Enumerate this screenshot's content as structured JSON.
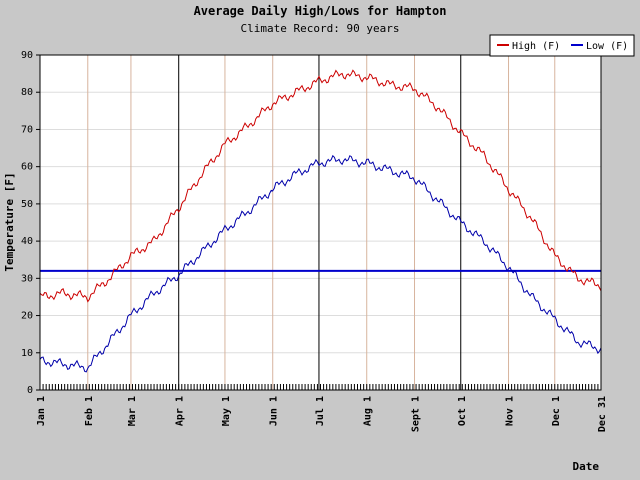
{
  "chart_data": {
    "type": "line",
    "title": "Average Daily High/Lows for Hampton",
    "subtitle": "Climate Record: 90 years",
    "xlabel": "Date",
    "ylabel": "Temperature [F]",
    "ylim": [
      0,
      90
    ],
    "yticks": [
      0,
      10,
      20,
      30,
      40,
      50,
      60,
      70,
      80,
      90
    ],
    "xlim": [
      1,
      365
    ],
    "xticks": [
      {
        "day": 1,
        "label": "Jan 1"
      },
      {
        "day": 32,
        "label": "Feb 1"
      },
      {
        "day": 60,
        "label": "Mar 1"
      },
      {
        "day": 91,
        "label": "Apr 1"
      },
      {
        "day": 121,
        "label": "May 1"
      },
      {
        "day": 152,
        "label": "Jun 1"
      },
      {
        "day": 182,
        "label": "Jul 1"
      },
      {
        "day": 213,
        "label": "Aug 1"
      },
      {
        "day": 244,
        "label": "Sept 1"
      },
      {
        "day": 274,
        "label": "Oct 1"
      },
      {
        "day": 305,
        "label": "Nov 1"
      },
      {
        "day": 335,
        "label": "Dec 1"
      },
      {
        "day": 365,
        "label": "Dec 31"
      }
    ],
    "quarter_lines": [
      91,
      182,
      274
    ],
    "month_lines": [
      32,
      60,
      121,
      152,
      213,
      244,
      305,
      335
    ],
    "grid": true,
    "legend_position": "top-right",
    "reference_line": {
      "value": 32,
      "color": "#0000cc"
    },
    "x": [
      1,
      16,
      32,
      46,
      60,
      75,
      91,
      106,
      121,
      136,
      152,
      167,
      182,
      197,
      213,
      228,
      244,
      259,
      274,
      289,
      305,
      320,
      335,
      350,
      365
    ],
    "series": [
      {
        "name": "High (F)",
        "color": "#cc0000",
        "values": [
          25,
          26,
          25,
          30,
          36,
          40,
          49,
          58,
          66,
          71,
          77,
          80,
          83,
          85,
          84,
          82,
          81,
          76,
          69,
          63,
          54,
          46,
          36,
          30,
          28
        ]
      },
      {
        "name": "Low (F)",
        "color": "#0000aa",
        "values": [
          8,
          7,
          6,
          13,
          20,
          26,
          31,
          37,
          43,
          48,
          54,
          58,
          61,
          62,
          61,
          59,
          57,
          51,
          45,
          40,
          33,
          25,
          19,
          13,
          11
        ]
      }
    ]
  }
}
